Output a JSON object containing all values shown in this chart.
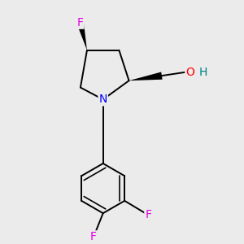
{
  "background_color": "#ebebeb",
  "atom_colors": {
    "F": "#e000e0",
    "N": "#0000ff",
    "O": "#ff0000",
    "H": "#008080",
    "C": "#000000"
  },
  "font_size_atoms": 10,
  "line_width": 1.4,
  "fig_size": [
    3.0,
    3.0
  ],
  "dpi": 100,
  "xlim": [
    0.0,
    1.0
  ],
  "ylim": [
    0.0,
    1.0
  ]
}
